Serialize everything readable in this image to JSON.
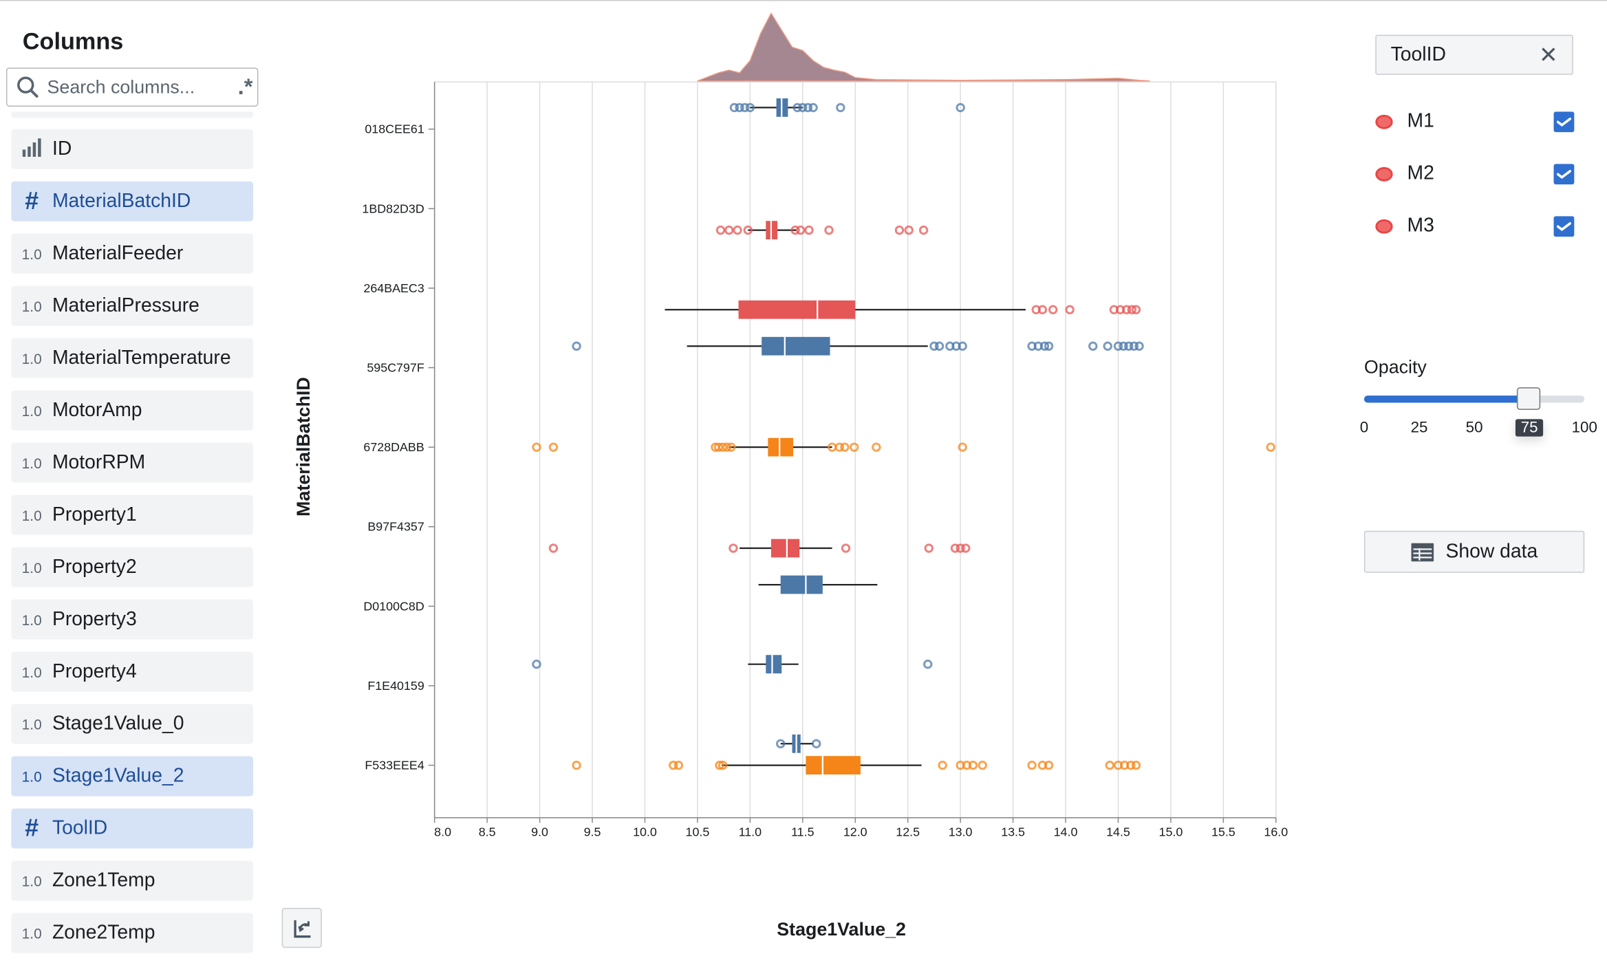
{
  "sidebar": {
    "title": "Columns",
    "search_placeholder": "Search columns...",
    "regex_label": ".*",
    "items": [
      {
        "label": "ID",
        "prefix": "",
        "icon": "bar-chart-icon",
        "selected": false
      },
      {
        "label": "MaterialBatchID",
        "prefix": "",
        "icon": "hash-icon",
        "selected": true
      },
      {
        "label": "MaterialFeeder",
        "prefix": "1.0",
        "icon": "",
        "selected": false
      },
      {
        "label": "MaterialPressure",
        "prefix": "1.0",
        "icon": "",
        "selected": false
      },
      {
        "label": "MaterialTemperature",
        "prefix": "1.0",
        "icon": "",
        "selected": false
      },
      {
        "label": "MotorAmp",
        "prefix": "1.0",
        "icon": "",
        "selected": false
      },
      {
        "label": "MotorRPM",
        "prefix": "1.0",
        "icon": "",
        "selected": false
      },
      {
        "label": "Property1",
        "prefix": "1.0",
        "icon": "",
        "selected": false
      },
      {
        "label": "Property2",
        "prefix": "1.0",
        "icon": "",
        "selected": false
      },
      {
        "label": "Property3",
        "prefix": "1.0",
        "icon": "",
        "selected": false
      },
      {
        "label": "Property4",
        "prefix": "1.0",
        "icon": "",
        "selected": false
      },
      {
        "label": "Stage1Value_0",
        "prefix": "1.0",
        "icon": "",
        "selected": false
      },
      {
        "label": "Stage1Value_2",
        "prefix": "1.0",
        "icon": "",
        "selected": true
      },
      {
        "label": "ToolID",
        "prefix": "",
        "icon": "hash-icon",
        "selected": true
      },
      {
        "label": "Zone1Temp",
        "prefix": "1.0",
        "icon": "",
        "selected": false
      },
      {
        "label": "Zone2Temp",
        "prefix": "1.0",
        "icon": "",
        "selected": false
      }
    ]
  },
  "panel": {
    "color_by": "ToolID",
    "legend": [
      {
        "label": "M1",
        "checked": true,
        "color": "#f06a6a"
      },
      {
        "label": "M2",
        "checked": true,
        "color": "#f06a6a"
      },
      {
        "label": "M3",
        "checked": true,
        "color": "#f06a6a"
      }
    ],
    "opacity": {
      "label": "Opacity",
      "value": 75,
      "ticks": [
        "0",
        "25",
        "50",
        "75",
        "100"
      ]
    },
    "show_data_label": "Show data"
  },
  "chart_data": {
    "type": "boxplot",
    "xlabel": "Stage1Value_2",
    "ylabel": "MaterialBatchID",
    "xlim": [
      8.0,
      16.0
    ],
    "x_ticks": [
      "8.0",
      "8.5",
      "9.0",
      "9.5",
      "10.0",
      "10.5",
      "11.0",
      "11.5",
      "12.0",
      "12.5",
      "13.0",
      "13.5",
      "14.0",
      "14.5",
      "15.0",
      "15.5",
      "16.0"
    ],
    "grid": true,
    "categories": [
      "018CEE61",
      "1BD82D3D",
      "264BAEC3",
      "595C797F",
      "6728DABB",
      "B97F4357",
      "D0100C8D",
      "F1E40159",
      "F533EEE4"
    ],
    "series_colors": {
      "M1": "#4c78a8",
      "M2": "#f58518",
      "M3": "#e45756"
    },
    "boxes": [
      {
        "category": "018CEE61",
        "tool": "M1",
        "min": 11.0,
        "q1": 11.25,
        "median": 11.3,
        "q3": 11.36,
        "max": 11.5,
        "outliers": [
          10.85,
          10.9,
          10.95,
          11.0,
          11.45,
          11.5,
          11.55,
          11.6,
          11.86,
          13.0
        ]
      },
      {
        "category": "1BD82D3D",
        "tool": "M3",
        "min": 10.98,
        "q1": 11.15,
        "median": 11.2,
        "q3": 11.26,
        "max": 11.44,
        "outliers": [
          10.72,
          10.8,
          10.88,
          10.98,
          11.43,
          11.48,
          11.56,
          11.75,
          12.42,
          12.51,
          12.65
        ]
      },
      {
        "category": "264BAEC3",
        "tool": "M3",
        "min": 10.19,
        "q1": 10.89,
        "median": 11.64,
        "q3": 12.0,
        "max": 13.62,
        "outliers": [
          13.72,
          13.78,
          13.88,
          14.04,
          14.46,
          14.52,
          14.58,
          14.63,
          14.67
        ]
      },
      {
        "category": "595C797F",
        "tool": "M1",
        "min": 10.4,
        "q1": 11.11,
        "median": 11.33,
        "q3": 11.76,
        "max": 12.69,
        "outliers": [
          9.35,
          12.75,
          12.8,
          12.9,
          12.96,
          13.02,
          13.68,
          13.74,
          13.8,
          13.84,
          14.26,
          14.4,
          14.5,
          14.55,
          14.6,
          14.65,
          14.7
        ]
      },
      {
        "category": "6728DABB",
        "tool": "M2",
        "min": 10.8,
        "q1": 11.17,
        "median": 11.28,
        "q3": 11.41,
        "max": 11.78,
        "outliers": [
          8.97,
          9.13,
          10.67,
          10.7,
          10.74,
          10.78,
          10.82,
          11.78,
          11.85,
          11.9,
          11.99,
          12.2,
          13.02,
          15.95
        ]
      },
      {
        "category": "B97F4357",
        "tool": "M3",
        "min": 10.9,
        "q1": 11.2,
        "median": 11.35,
        "q3": 11.47,
        "max": 11.78,
        "outliers": [
          9.13,
          10.84,
          11.91,
          12.7,
          12.95,
          13.0,
          13.05
        ]
      },
      {
        "category": "D0100C8D",
        "tool": "M1",
        "min": 11.08,
        "q1": 11.29,
        "median": 11.53,
        "q3": 11.69,
        "max": 12.21,
        "outliers": []
      },
      {
        "category": "F1E40159",
        "tool": "M1",
        "min": 10.98,
        "q1": 11.15,
        "median": 11.21,
        "q3": 11.3,
        "max": 11.46,
        "outliers": [
          8.97,
          12.69
        ]
      },
      {
        "category": "F533EEE4",
        "tool": "M1",
        "min": 11.29,
        "q1": 11.4,
        "median": 11.44,
        "q3": 11.48,
        "max": 11.6,
        "outliers": [
          11.29,
          11.63
        ]
      },
      {
        "category": "F533EEE4",
        "tool": "M2",
        "min": 10.73,
        "q1": 11.53,
        "median": 11.69,
        "q3": 12.05,
        "max": 12.63,
        "outliers": [
          9.35,
          10.27,
          10.32,
          10.71,
          10.74,
          12.83,
          13.0,
          13.06,
          13.12,
          13.21,
          13.68,
          13.78,
          13.84,
          14.42,
          14.5,
          14.56,
          14.62,
          14.67
        ]
      }
    ],
    "marginal_density": {
      "color": "#9b7b86",
      "x": [
        10.5,
        10.7,
        10.8,
        10.9,
        11.0,
        11.1,
        11.2,
        11.3,
        11.4,
        11.5,
        11.6,
        11.7,
        11.8,
        11.9,
        12.0,
        12.2,
        13.0,
        14.0,
        14.5,
        14.7,
        14.8
      ],
      "density": [
        0,
        0.12,
        0.16,
        0.12,
        0.3,
        0.7,
        1.0,
        0.75,
        0.5,
        0.45,
        0.3,
        0.2,
        0.16,
        0.13,
        0.05,
        0.02,
        0.01,
        0.02,
        0.04,
        0.01,
        0
      ]
    }
  }
}
